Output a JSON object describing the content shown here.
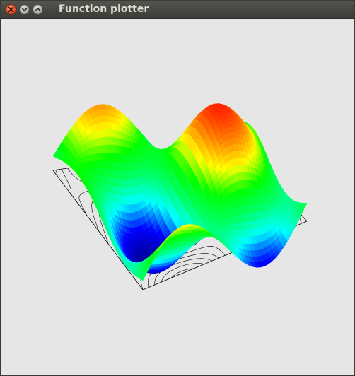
{
  "window": {
    "title": "Function plotter",
    "buttons": {
      "close": "close-icon",
      "minimize": "minimize-icon",
      "maximize": "maximize-icon"
    }
  },
  "plot": {
    "background": "#e6e6e6",
    "contour_color": "#000000",
    "colormap": [
      "#00008b",
      "#0000ff",
      "#00ffff",
      "#00ff66",
      "#00ff00",
      "#ffff00",
      "#ff8800",
      "#ff2200"
    ]
  }
}
